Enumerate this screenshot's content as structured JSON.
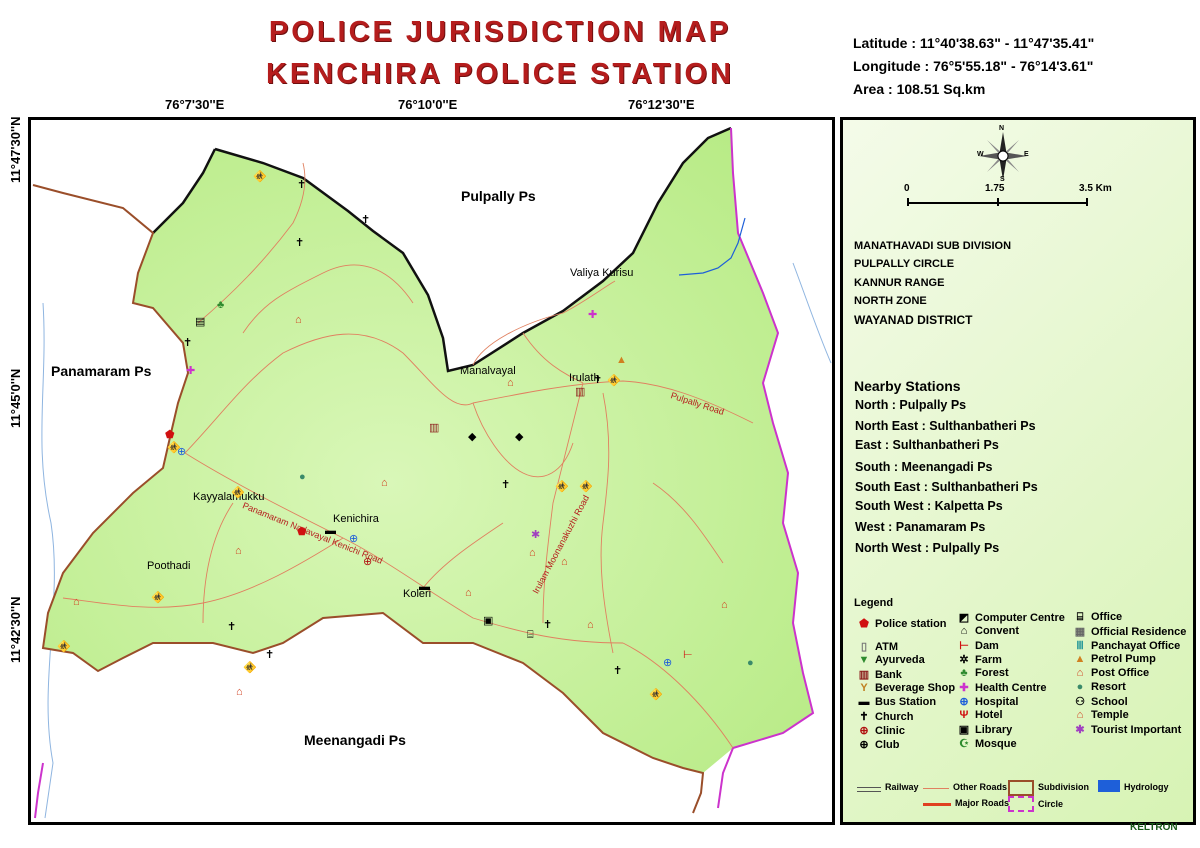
{
  "title": {
    "line1": "POLICE JURISDICTION MAP",
    "line2": "KENCHIRA POLICE STATION"
  },
  "info": {
    "latitude": "Latitude : 11°40'38.63\"  -  11°47'35.41\"",
    "longitude": "Longitude : 76°5'55.18\"  -  76°14'3.61\"",
    "area": "Area : 108.51 Sq.km"
  },
  "grid": {
    "top_ticks": [
      "76°7'30''E",
      "76°10'0''E",
      "76°12'30''E"
    ],
    "left_ticks": [
      "11°47'30''N",
      "11°45'0''N",
      "11°42'30''N"
    ]
  },
  "map_labels": {
    "pulpally": "Pulpally Ps",
    "panamaram": "Panamaram Ps",
    "meenangadi": "Meenangadi Ps",
    "valiya_kurisu": "Valiya Kurisu",
    "manalvayal": "Manalvayal",
    "irulath": "Irulath",
    "kayyalamukku": "Kayyalamukku",
    "kenichira": "Kenichira",
    "poothadi": "Poothadi",
    "koleri": "Koleri"
  },
  "road_labels": {
    "pulpally_road": "Pulpally Road",
    "panamaram_road": "Panamaram Nadavayal Kenichi Road",
    "irulam_road": "Irulam Moonanakuzhi Road"
  },
  "panel": {
    "compass": {
      "n": "N",
      "s": "S",
      "e": "E",
      "w": "W"
    },
    "scale": [
      "0",
      "1.75",
      "3.5 Km"
    ],
    "admin": [
      "MANATHAVADI SUB DIVISION",
      "PULPALLY CIRCLE",
      "KANNUR RANGE",
      "NORTH ZONE",
      "WAYANAD  DISTRICT"
    ],
    "nearby_title": "Nearby Stations",
    "nearby": [
      "North : Pulpally Ps",
      "North East : Sulthanbatheri Ps",
      "East : Sulthanbatheri Ps",
      "South : Meenangadi Ps",
      "South East : Sulthanbatheri Ps",
      "South West : Kalpetta Ps",
      "West : Panamaram Ps",
      "North West : Pulpally Ps"
    ],
    "legend_title": "Legend",
    "legend_col1": [
      "Police station",
      "ATM",
      "Ayurveda",
      "Bank",
      "Beverage Shop",
      "Bus Station",
      "Church",
      "Clinic",
      "Club"
    ],
    "legend_col2": [
      "Computer Centre",
      "Convent",
      "Dam",
      "Farm",
      "Forest",
      "Health Centre",
      "Hospital",
      "Hotel",
      "Library",
      "Mosque"
    ],
    "legend_col3": [
      "Office",
      "Official Residence",
      "Panchayat Office",
      "Petrol Pump",
      "Post Office",
      "Resort",
      "School",
      "Temple",
      "Tourist Important"
    ],
    "line_legend": {
      "railway": "Railway",
      "other_roads": "Other Roads",
      "subdivision": "Subdivision",
      "hydrology": "Hydrology",
      "major_roads": "Major Roads",
      "circle": "Circle"
    },
    "brand": "KELTRON"
  },
  "colors": {
    "title": "#b51d1d",
    "land": "#c9f29a",
    "road": "#e08060",
    "boundary": "#111111",
    "subdivision": "#a0522d",
    "circle": "#cc33cc",
    "water": "#1e5fd9"
  }
}
